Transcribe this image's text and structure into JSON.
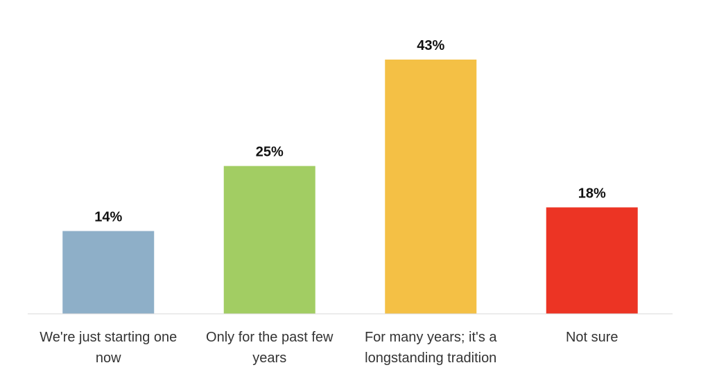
{
  "chart_data": {
    "type": "bar",
    "categories": [
      "We're just starting one now",
      "Only for the past few years",
      "For many years; it's a longstanding tradition",
      "Not sure"
    ],
    "values": [
      14,
      25,
      43,
      18
    ],
    "value_labels": [
      "14%",
      "25%",
      "43%",
      "18%"
    ],
    "colors": [
      "#8eafc8",
      "#a2cd63",
      "#f4c045",
      "#ec3424"
    ]
  }
}
